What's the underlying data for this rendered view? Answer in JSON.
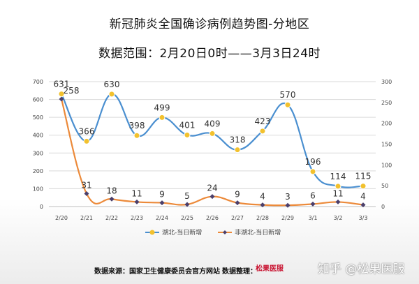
{
  "header": {
    "title": "新冠肺炎全国确诊病例趋势图-分地区",
    "subtitle": "数据范围：2月20日0时——3月3日24时"
  },
  "footer": {
    "source_label": "数据来源：国家卫生健康委员会官方网站",
    "organizer_label": "数据整理：",
    "logo_text": "松果医服",
    "watermark": "知乎 @松果医服"
  },
  "chart_data": {
    "type": "line",
    "categories": [
      "2/20",
      "2/21",
      "2/22",
      "2/23",
      "2/24",
      "2/25",
      "2/26",
      "2/27",
      "2/28",
      "2/29",
      "3/1",
      "3/2",
      "3/3"
    ],
    "series": [
      {
        "name": "湖北-当日新增",
        "axis": "left",
        "color": "#4a8fd0",
        "marker_color": "#f2c12e",
        "marker": "circle",
        "smooth": true,
        "values": [
          631,
          366,
          630,
          398,
          499,
          401,
          409,
          318,
          423,
          570,
          196,
          114,
          115
        ]
      },
      {
        "name": "非湖北-当日新增",
        "axis": "right",
        "color": "#ec8a3a",
        "marker_color": "#4b3f6b",
        "marker": "diamond",
        "smooth": true,
        "values": [
          258,
          31,
          18,
          11,
          9,
          5,
          24,
          9,
          4,
          3,
          6,
          11,
          4
        ]
      }
    ],
    "y_left": {
      "min": 0,
      "max": 700,
      "ticks": [
        0,
        100,
        200,
        300,
        400,
        500,
        600,
        700
      ]
    },
    "y_right": {
      "min": 0,
      "max": 300,
      "ticks": [
        0,
        50,
        100,
        150,
        200,
        250,
        300
      ]
    },
    "grid": true,
    "legend_position": "bottom"
  }
}
